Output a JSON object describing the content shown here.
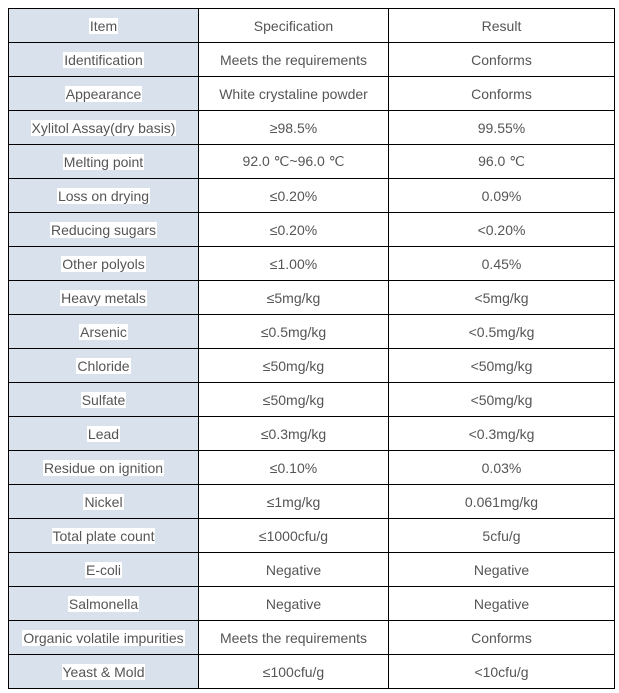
{
  "table": {
    "headers": [
      "Item",
      "Specification",
      "Result"
    ],
    "rows": [
      [
        "Identification",
        "Meets the requirements",
        "Conforms"
      ],
      [
        "Appearance",
        "White crystaline powder",
        "Conforms"
      ],
      [
        "Xylitol Assay(dry basis)",
        "≥98.5%",
        "99.55%"
      ],
      [
        "Melting point",
        "92.0 ℃~96.0 ℃",
        "96.0 ℃"
      ],
      [
        "Loss on drying",
        "≤0.20%",
        "0.09%"
      ],
      [
        "Reducing sugars",
        "≤0.20%",
        "<0.20%"
      ],
      [
        "Other polyols",
        "≤1.00%",
        "0.45%"
      ],
      [
        "Heavy metals",
        "≤5mg/kg",
        "<5mg/kg"
      ],
      [
        "Arsenic",
        "≤0.5mg/kg",
        "<0.5mg/kg"
      ],
      [
        "Chloride",
        "≤50mg/kg",
        "<50mg/kg"
      ],
      [
        "Sulfate",
        "≤50mg/kg",
        "<50mg/kg"
      ],
      [
        "Lead",
        "≤0.3mg/kg",
        "<0.3mg/kg"
      ],
      [
        "Residue on ignition",
        "≤0.10%",
        "0.03%"
      ],
      [
        "Nickel",
        "≤1mg/kg",
        "0.061mg/kg"
      ],
      [
        "Total plate count",
        "≤1000cfu/g",
        "5cfu/g"
      ],
      [
        "E-coli",
        "Negative",
        "Negative"
      ],
      [
        "Salmonella",
        "Negative",
        "Negative"
      ],
      [
        "Organic volatile impurities",
        "Meets the requirements",
        "Conforms"
      ],
      [
        "Yeast & Mold",
        "≤100cfu/g",
        "<10cfu/g"
      ]
    ]
  }
}
